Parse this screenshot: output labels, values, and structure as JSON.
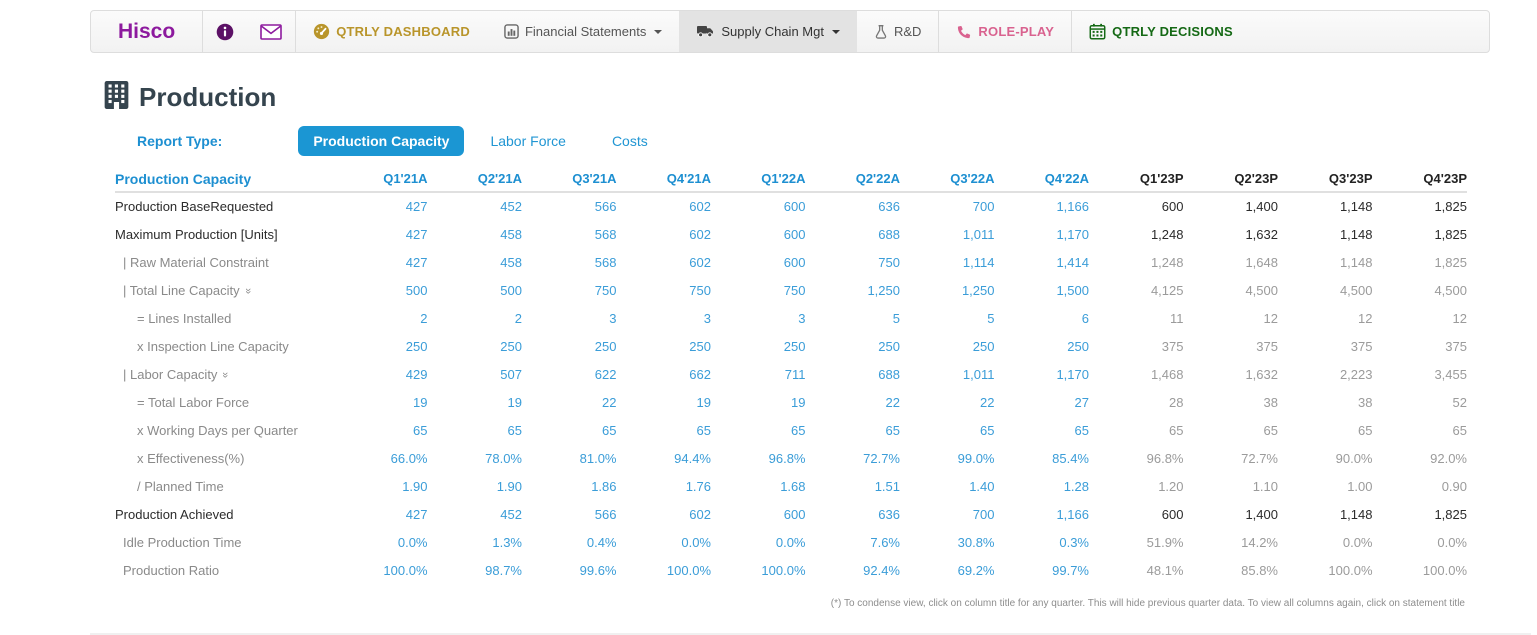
{
  "navbar": {
    "brand": "Hisco",
    "items": [
      {
        "label": "QTRLY DASHBOARD",
        "icon": "dashboard-icon"
      },
      {
        "label": "Financial Statements",
        "icon": "bar-chart-icon"
      },
      {
        "label": "Supply Chain Mgt",
        "icon": "truck-icon"
      },
      {
        "label": "R&D",
        "icon": "flask-icon"
      },
      {
        "label": "ROLE-PLAY",
        "icon": "phone-icon"
      },
      {
        "label": "QTRLY DECISIONS",
        "icon": "calendar-icon"
      }
    ]
  },
  "page": {
    "title": "Production",
    "title_icon": "building-icon",
    "report_type_label": "Report Type:",
    "tabs": [
      {
        "label": "Production Capacity",
        "active": true
      },
      {
        "label": "Labor Force",
        "active": false
      },
      {
        "label": "Costs",
        "active": false
      }
    ]
  },
  "table": {
    "label_header": "Production Capacity",
    "columns": [
      {
        "label": "Q1'21A",
        "type": "actual"
      },
      {
        "label": "Q2'21A",
        "type": "actual"
      },
      {
        "label": "Q3'21A",
        "type": "actual"
      },
      {
        "label": "Q4'21A",
        "type": "actual"
      },
      {
        "label": "Q1'22A",
        "type": "actual"
      },
      {
        "label": "Q2'22A",
        "type": "actual"
      },
      {
        "label": "Q3'22A",
        "type": "actual"
      },
      {
        "label": "Q4'22A",
        "type": "actual"
      },
      {
        "label": "Q1'23P",
        "type": "proj"
      },
      {
        "label": "Q2'23P",
        "type": "proj"
      },
      {
        "label": "Q3'23P",
        "type": "proj"
      },
      {
        "label": "Q4'23P",
        "type": "proj"
      }
    ],
    "rows": [
      {
        "label": "Production BaseRequested",
        "level": 0,
        "emphasis": true,
        "chevron": false,
        "values": [
          "427",
          "452",
          "566",
          "602",
          "600",
          "636",
          "700",
          "1,166",
          "600",
          "1,400",
          "1,148",
          "1,825"
        ]
      },
      {
        "label": "Maximum Production [Units]",
        "level": 0,
        "emphasis": true,
        "chevron": false,
        "values": [
          "427",
          "458",
          "568",
          "602",
          "600",
          "688",
          "1,011",
          "1,170",
          "1,248",
          "1,632",
          "1,148",
          "1,825"
        ]
      },
      {
        "label": "| Raw Material Constraint",
        "level": 1,
        "emphasis": false,
        "chevron": false,
        "values": [
          "427",
          "458",
          "568",
          "602",
          "600",
          "750",
          "1,114",
          "1,414",
          "1,248",
          "1,648",
          "1,148",
          "1,825"
        ]
      },
      {
        "label": "| Total Line Capacity",
        "level": 1,
        "emphasis": false,
        "chevron": true,
        "values": [
          "500",
          "500",
          "750",
          "750",
          "750",
          "1,250",
          "1,250",
          "1,500",
          "4,125",
          "4,500",
          "4,500",
          "4,500"
        ]
      },
      {
        "label": "= Lines Installed",
        "level": 2,
        "emphasis": false,
        "chevron": false,
        "values": [
          "2",
          "2",
          "3",
          "3",
          "3",
          "5",
          "5",
          "6",
          "11",
          "12",
          "12",
          "12"
        ]
      },
      {
        "label": "x Inspection Line Capacity",
        "level": 2,
        "emphasis": false,
        "chevron": false,
        "values": [
          "250",
          "250",
          "250",
          "250",
          "250",
          "250",
          "250",
          "250",
          "375",
          "375",
          "375",
          "375"
        ]
      },
      {
        "label": "| Labor Capacity",
        "level": 1,
        "emphasis": false,
        "chevron": true,
        "values": [
          "429",
          "507",
          "622",
          "662",
          "711",
          "688",
          "1,011",
          "1,170",
          "1,468",
          "1,632",
          "2,223",
          "3,455"
        ]
      },
      {
        "label": "= Total Labor Force",
        "level": 2,
        "emphasis": false,
        "chevron": false,
        "values": [
          "19",
          "19",
          "22",
          "19",
          "19",
          "22",
          "22",
          "27",
          "28",
          "38",
          "38",
          "52"
        ]
      },
      {
        "label": "x Working Days per Quarter",
        "level": 2,
        "emphasis": false,
        "chevron": false,
        "values": [
          "65",
          "65",
          "65",
          "65",
          "65",
          "65",
          "65",
          "65",
          "65",
          "65",
          "65",
          "65"
        ]
      },
      {
        "label": "x Effectiveness(%)",
        "level": 2,
        "emphasis": false,
        "chevron": false,
        "values": [
          "66.0%",
          "78.0%",
          "81.0%",
          "94.4%",
          "96.8%",
          "72.7%",
          "99.0%",
          "85.4%",
          "96.8%",
          "72.7%",
          "90.0%",
          "92.0%"
        ]
      },
      {
        "label": "/ Planned Time",
        "level": 2,
        "emphasis": false,
        "chevron": false,
        "values": [
          "1.90",
          "1.90",
          "1.86",
          "1.76",
          "1.68",
          "1.51",
          "1.40",
          "1.28",
          "1.20",
          "1.10",
          "1.00",
          "0.90"
        ]
      },
      {
        "label": "Production Achieved",
        "level": 0,
        "emphasis": true,
        "chevron": false,
        "values": [
          "427",
          "452",
          "566",
          "602",
          "600",
          "636",
          "700",
          "1,166",
          "600",
          "1,400",
          "1,148",
          "1,825"
        ]
      },
      {
        "label": "Idle Production Time",
        "level": 1,
        "emphasis": false,
        "chevron": false,
        "values": [
          "0.0%",
          "1.3%",
          "0.4%",
          "0.0%",
          "0.0%",
          "7.6%",
          "30.8%",
          "0.3%",
          "51.9%",
          "14.2%",
          "0.0%",
          "0.0%"
        ]
      },
      {
        "label": "Production Ratio",
        "level": 1,
        "emphasis": false,
        "chevron": false,
        "values": [
          "100.0%",
          "98.7%",
          "99.6%",
          "100.0%",
          "100.0%",
          "92.4%",
          "69.2%",
          "99.7%",
          "48.1%",
          "85.8%",
          "100.0%",
          "100.0%"
        ]
      }
    ]
  },
  "footnote": "(*) To condense view, click on column title for any quarter. This will hide previous quarter data. To view all columns again, click on statement title",
  "colors": {
    "brand_purple": "#8d1a9e",
    "info_purple": "#5c1166",
    "dashboard_gold": "#b9952b",
    "roleplay_pink": "#d9628f",
    "decisions_green": "#156915",
    "accent_blue": "#1d8fd1",
    "data_blue": "#3b9dd8",
    "projection_gray": "#9b9b9b",
    "title_slate": "#35444e",
    "active_tab_bg": "#1b96d3",
    "navbar_active_bg": "#e3e3e3"
  }
}
